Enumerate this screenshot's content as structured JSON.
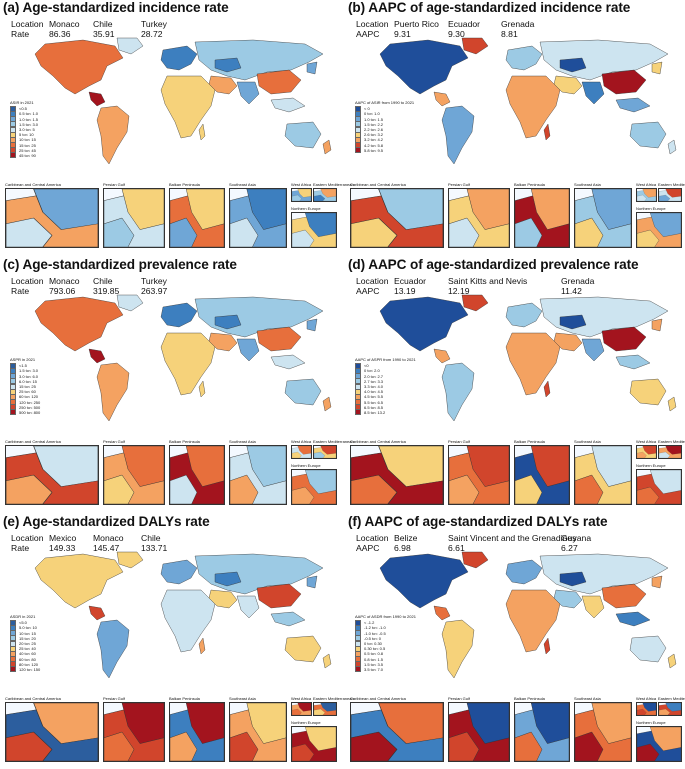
{
  "panels": [
    {
      "id": "a",
      "title": "(a) Age-standardized incidence rate",
      "label_a": "Location",
      "label_b": "Rate",
      "top": [
        {
          "location": "Monaco",
          "value": "86.36"
        },
        {
          "location": "Chile",
          "value": "35.91"
        },
        {
          "location": "Turkey",
          "value": "28.72"
        }
      ],
      "legend_title": "ASIR in 2021",
      "legend": [
        "<0.5",
        "0.5 to< 1.0",
        "1.0 to< 1.5",
        "1.5 to< 3.0",
        "3.0 to< 5",
        "5 to< 10",
        "10 to< 15",
        "15 to< 25",
        "25 to< 45",
        "45 to< 90"
      ],
      "palette": [
        "#2c5e9e",
        "#3d7fbf",
        "#6fa6d6",
        "#9ccae4",
        "#cde4f0",
        "#f6d27a",
        "#f4a261",
        "#e76f3c",
        "#d1452c",
        "#a3141e"
      ],
      "regions": [
        7,
        4,
        9,
        6,
        1,
        3,
        6,
        2,
        7,
        5,
        4,
        3,
        1,
        2,
        5,
        6
      ]
    },
    {
      "id": "b",
      "title": "(b) AAPC of age-standardized incidence rate",
      "label_a": "Location",
      "label_b": "AAPC",
      "top": [
        {
          "location": "Puerto Rico",
          "value": "9.31"
        },
        {
          "location": "Ecuador",
          "value": "9.30"
        },
        {
          "location": "Grenada",
          "value": "8.81"
        }
      ],
      "legend_title": "AAPC of ASIR from 1990 to 2021",
      "legend": [
        "< 0",
        "0 to< 1.0",
        "1.0 to< 1.5",
        "1.5 to< 2.2",
        "2.2 to< 2.6",
        "2.6 to< 3.2",
        "3.2 to< 4.2",
        "4.2 to< 5.8",
        "5.8 to< 9.5"
      ],
      "palette": [
        "#1f4e9a",
        "#3d7fbf",
        "#6fa6d6",
        "#9ccae4",
        "#cde4f0",
        "#f6d27a",
        "#f4a261",
        "#d1452c",
        "#a3141e"
      ],
      "regions": [
        0,
        7,
        6,
        2,
        3,
        4,
        5,
        1,
        8,
        6,
        2,
        3,
        0,
        5,
        7,
        4
      ]
    },
    {
      "id": "c",
      "title": "(c) Age-standardized prevalence rate",
      "label_a": "Location",
      "label_b": "Rate",
      "top": [
        {
          "location": "Monaco",
          "value": "793.06"
        },
        {
          "location": "Chile",
          "value": "319.85"
        },
        {
          "location": "Turkey",
          "value": "263.97"
        }
      ],
      "legend_title": "ASPR in 2021",
      "legend": [
        "<1.5",
        "1.5 to< 3.0",
        "3.0 to< 6.0",
        "6.0 to< 15",
        "15 to< 25",
        "25 to< 60",
        "60 to< 120",
        "120 to< 250",
        "250 to< 500",
        "500 to< 800"
      ],
      "palette": [
        "#2c5e9e",
        "#3d7fbf",
        "#6fa6d6",
        "#9ccae4",
        "#cde4f0",
        "#f6d27a",
        "#f4a261",
        "#e76f3c",
        "#d1452c",
        "#a3141e"
      ],
      "regions": [
        7,
        4,
        9,
        6,
        1,
        3,
        6,
        2,
        7,
        5,
        4,
        3,
        1,
        2,
        5,
        6
      ]
    },
    {
      "id": "d",
      "title": "(d) AAPC of age-standardized prevalence rate",
      "label_a": "Location",
      "label_b": "AAPC",
      "top": [
        {
          "location": "Ecuador",
          "value": "13.19"
        },
        {
          "location": "Saint Kitts and Nevis",
          "value": "12.19"
        },
        {
          "location": "Grenada",
          "value": "11.42"
        }
      ],
      "legend_title": "AAPC of ASPR from 1990 to 2021",
      "legend": [
        "<0",
        "0 to< 2.0",
        "2.0 to< 2.7",
        "2.7 to< 3.3",
        "3.3 to< 4.0",
        "4.0 to< 4.5",
        "4.5 to< 5.5",
        "5.5 to< 6.5",
        "6.5 to< 8.5",
        "8.5 to< 13.2"
      ],
      "palette": [
        "#1f4e9a",
        "#3d7fbf",
        "#6fa6d6",
        "#9ccae4",
        "#cde4f0",
        "#f6d27a",
        "#f4a261",
        "#e76f3c",
        "#d1452c",
        "#a3141e"
      ],
      "regions": [
        0,
        8,
        6,
        3,
        3,
        4,
        6,
        2,
        9,
        6,
        3,
        5,
        0,
        6,
        8,
        5
      ]
    },
    {
      "id": "e",
      "title": "(e) Age-standardized DALYs rate",
      "label_a": "Location",
      "label_b": "Rate",
      "top": [
        {
          "location": "Mexico",
          "value": "149.33"
        },
        {
          "location": "Monaco",
          "value": "145.47"
        },
        {
          "location": "Chile",
          "value": "133.71"
        }
      ],
      "legend_title": "ASDR in 2021",
      "legend": [
        "<5.0",
        "5.0 to< 10",
        "10 to< 15",
        "15 to< 20",
        "20 to< 25",
        "25 to< 40",
        "40 to< 60",
        "60 to< 80",
        "80 to< 120",
        "120 to< 150"
      ],
      "palette": [
        "#2c5e9e",
        "#3d7fbf",
        "#6fa6d6",
        "#9ccae4",
        "#cde4f0",
        "#f6d27a",
        "#f4a261",
        "#e76f3c",
        "#d1452c",
        "#a3141e"
      ],
      "regions": [
        5,
        5,
        8,
        2,
        2,
        3,
        5,
        4,
        8,
        4,
        3,
        5,
        1,
        2,
        6,
        5
      ]
    },
    {
      "id": "f",
      "title": "(f) AAPC of age-standardized DALYs rate",
      "label_a": "Location",
      "label_b": "AAPC",
      "top": [
        {
          "location": "Belize",
          "value": "6.98"
        },
        {
          "location": "Saint Vincent and the Grenadines",
          "value": "6.61"
        },
        {
          "location": "Guyana",
          "value": "6.27"
        }
      ],
      "legend_title": "AAPC of ASDR from 1990 to 2021",
      "legend": [
        "< -1.2",
        "-1.2 to< -1.0",
        "-1.0 to< -0.5",
        "-0.5 to< 0",
        "0 to< 0.30",
        "0.30 to< 0.5",
        "0.5 to< 0.8",
        "0.8 to< 1.5",
        "1.5 to< 3.5",
        "3.5 to< 7.0"
      ],
      "palette": [
        "#1f4e9a",
        "#3d7fbf",
        "#6fa6d6",
        "#9ccae4",
        "#cde4f0",
        "#f6d27a",
        "#f4a261",
        "#e76f3c",
        "#d1452c",
        "#a3141e"
      ],
      "regions": [
        0,
        8,
        7,
        5,
        2,
        4,
        3,
        5,
        7,
        6,
        1,
        4,
        0,
        6,
        8,
        5
      ]
    }
  ],
  "insets": [
    {
      "label": "Caribbean and Central America",
      "fills": [
        6,
        2,
        4
      ]
    },
    {
      "label": "Persian Gulf",
      "fills": [
        4,
        5,
        3
      ]
    },
    {
      "label": "Balkan Peninsula",
      "fills": [
        7,
        5,
        2
      ]
    },
    {
      "label": "Southeast Asia",
      "fills": [
        2,
        1,
        4
      ]
    },
    {
      "label": "West Africa",
      "fills": [
        2,
        5,
        3
      ]
    },
    {
      "label": "Eastern Mediterranean",
      "fills": [
        3,
        6,
        1
      ]
    },
    {
      "label": "Northern Europe",
      "fills": [
        5,
        1,
        4
      ]
    }
  ]
}
